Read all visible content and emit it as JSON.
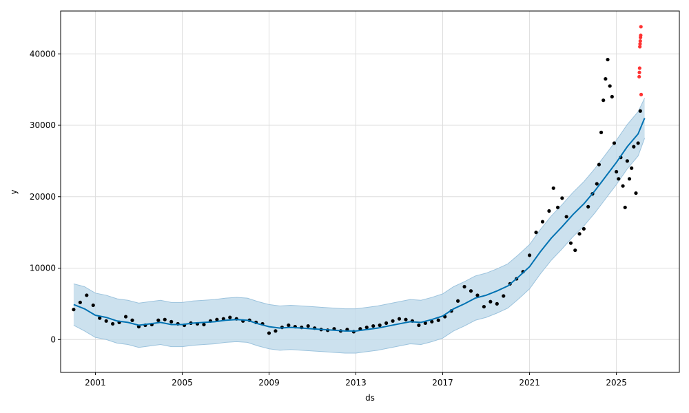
{
  "chart_data": {
    "type": "line",
    "title": "",
    "xlabel": "ds",
    "ylabel": "y",
    "xlim": [
      1999.4,
      2027.9
    ],
    "ylim": [
      -4600,
      46000
    ],
    "grid": true,
    "legend": "none",
    "x_ticks": [
      2001,
      2005,
      2009,
      2013,
      2017,
      2021,
      2025
    ],
    "x_tick_labels": [
      "2001",
      "2005",
      "2009",
      "2013",
      "2017",
      "2021",
      "2025"
    ],
    "y_ticks": [
      0,
      10000,
      20000,
      30000,
      40000
    ],
    "y_tick_labels": [
      "0",
      "10000",
      "20000",
      "30000",
      "40000"
    ],
    "colors": {
      "forecast_line": "#0072B2",
      "interval_fill": "#BFD9EA",
      "interval_edge": "#9CC3DD",
      "observed_points": "#000000",
      "outlier_points": "#FF3333",
      "grid": "#DDDDDD"
    },
    "series": [
      {
        "role": "forecast",
        "x": [
          2000.0,
          2000.5,
          2001.0,
          2001.5,
          2002.0,
          2002.5,
          2003.0,
          2003.5,
          2004.0,
          2004.5,
          2005.0,
          2005.5,
          2006.0,
          2006.5,
          2007.0,
          2007.5,
          2008.0,
          2008.5,
          2009.0,
          2009.5,
          2010.0,
          2010.5,
          2011.0,
          2011.5,
          2012.0,
          2012.5,
          2013.0,
          2013.5,
          2014.0,
          2014.5,
          2015.0,
          2015.5,
          2016.0,
          2016.5,
          2017.0,
          2017.5,
          2018.0,
          2018.5,
          2019.0,
          2019.5,
          2020.0,
          2020.5,
          2021.0,
          2021.5,
          2022.0,
          2022.5,
          2023.0,
          2023.5,
          2024.0,
          2024.5,
          2025.0,
          2025.5,
          2026.0,
          2026.3
        ],
        "values": [
          4900,
          4300,
          3400,
          3100,
          2600,
          2400,
          2000,
          2200,
          2400,
          2100,
          2100,
          2300,
          2400,
          2500,
          2700,
          2800,
          2700,
          2200,
          1800,
          1600,
          1700,
          1600,
          1500,
          1400,
          1300,
          1200,
          1200,
          1400,
          1600,
          1900,
          2200,
          2500,
          2400,
          2800,
          3300,
          4300,
          5000,
          5800,
          6200,
          6800,
          7500,
          8800,
          10200,
          12300,
          14200,
          15800,
          17500,
          19000,
          20800,
          22800,
          24800,
          27000,
          28800,
          31000
        ]
      },
      {
        "role": "interval_upper",
        "x": [
          2000.0,
          2000.5,
          2001.0,
          2001.5,
          2002.0,
          2002.5,
          2003.0,
          2003.5,
          2004.0,
          2004.5,
          2005.0,
          2005.5,
          2006.0,
          2006.5,
          2007.0,
          2007.5,
          2008.0,
          2008.5,
          2009.0,
          2009.5,
          2010.0,
          2010.5,
          2011.0,
          2011.5,
          2012.0,
          2012.5,
          2013.0,
          2013.5,
          2014.0,
          2014.5,
          2015.0,
          2015.5,
          2016.0,
          2016.5,
          2017.0,
          2017.5,
          2018.0,
          2018.5,
          2019.0,
          2019.5,
          2020.0,
          2020.5,
          2021.0,
          2021.5,
          2022.0,
          2022.5,
          2023.0,
          2023.5,
          2024.0,
          2024.5,
          2025.0,
          2025.5,
          2026.0,
          2026.3
        ],
        "values": [
          7800,
          7400,
          6500,
          6200,
          5700,
          5500,
          5100,
          5300,
          5500,
          5200,
          5200,
          5400,
          5500,
          5600,
          5800,
          5900,
          5800,
          5300,
          4900,
          4700,
          4800,
          4700,
          4600,
          4500,
          4400,
          4300,
          4300,
          4500,
          4700,
          5000,
          5300,
          5600,
          5500,
          5900,
          6400,
          7400,
          8100,
          8900,
          9300,
          9900,
          10600,
          11900,
          13300,
          15400,
          17300,
          18900,
          20600,
          22100,
          23900,
          25900,
          27900,
          30100,
          31900,
          33800
        ]
      },
      {
        "role": "interval_lower",
        "x": [
          2000.0,
          2000.5,
          2001.0,
          2001.5,
          2002.0,
          2002.5,
          2003.0,
          2003.5,
          2004.0,
          2004.5,
          2005.0,
          2005.5,
          2006.0,
          2006.5,
          2007.0,
          2007.5,
          2008.0,
          2008.5,
          2009.0,
          2009.5,
          2010.0,
          2010.5,
          2011.0,
          2011.5,
          2012.0,
          2012.5,
          2013.0,
          2013.5,
          2014.0,
          2014.5,
          2015.0,
          2015.5,
          2016.0,
          2016.5,
          2017.0,
          2017.5,
          2018.0,
          2018.5,
          2019.0,
          2019.5,
          2020.0,
          2020.5,
          2021.0,
          2021.5,
          2022.0,
          2022.5,
          2023.0,
          2023.5,
          2024.0,
          2024.5,
          2025.0,
          2025.5,
          2026.0,
          2026.3
        ],
        "values": [
          2000,
          1200,
          300,
          0,
          -500,
          -700,
          -1100,
          -900,
          -700,
          -1000,
          -1000,
          -800,
          -700,
          -600,
          -400,
          -300,
          -400,
          -900,
          -1300,
          -1500,
          -1400,
          -1500,
          -1600,
          -1700,
          -1800,
          -1900,
          -1900,
          -1700,
          -1500,
          -1200,
          -900,
          -600,
          -700,
          -300,
          200,
          1200,
          1900,
          2700,
          3100,
          3700,
          4400,
          5700,
          7100,
          9200,
          11100,
          12700,
          14400,
          15900,
          17700,
          19700,
          21700,
          23900,
          25700,
          28200
        ]
      },
      {
        "role": "observed",
        "x": [
          2000.0,
          2000.3,
          2000.6,
          2000.9,
          2001.2,
          2001.5,
          2001.8,
          2002.1,
          2002.4,
          2002.7,
          2003.0,
          2003.3,
          2003.6,
          2003.9,
          2004.2,
          2004.5,
          2004.8,
          2005.1,
          2005.4,
          2005.7,
          2006.0,
          2006.3,
          2006.6,
          2006.9,
          2007.2,
          2007.5,
          2007.8,
          2008.1,
          2008.4,
          2008.7,
          2009.0,
          2009.3,
          2009.6,
          2009.9,
          2010.2,
          2010.5,
          2010.8,
          2011.1,
          2011.4,
          2011.7,
          2012.0,
          2012.3,
          2012.6,
          2012.9,
          2013.2,
          2013.5,
          2013.8,
          2014.1,
          2014.4,
          2014.7,
          2015.0,
          2015.3,
          2015.6,
          2015.9,
          2016.2,
          2016.5,
          2016.8,
          2017.1,
          2017.4,
          2017.7,
          2018.0,
          2018.3,
          2018.6,
          2018.9,
          2019.2,
          2019.5,
          2019.8,
          2020.1,
          2020.4,
          2020.7,
          2021.0,
          2021.3,
          2021.6,
          2021.9,
          2022.1,
          2022.3,
          2022.5,
          2022.7,
          2022.9,
          2023.1,
          2023.3,
          2023.5,
          2023.7,
          2023.9,
          2024.1,
          2024.2,
          2024.3,
          2024.4,
          2024.5,
          2024.6,
          2024.7,
          2024.8,
          2024.9,
          2025.0,
          2025.1,
          2025.2,
          2025.3,
          2025.4,
          2025.5,
          2025.6,
          2025.7,
          2025.8,
          2025.9,
          2026.0,
          2026.1
        ],
        "values": [
          4200,
          5200,
          6200,
          4800,
          3000,
          2600,
          2200,
          2400,
          3200,
          2700,
          1800,
          2000,
          2100,
          2700,
          2800,
          2500,
          2200,
          2000,
          2300,
          2200,
          2100,
          2600,
          2800,
          2900,
          3100,
          2900,
          2600,
          2700,
          2400,
          2200,
          900,
          1200,
          1700,
          2000,
          1800,
          1700,
          1900,
          1600,
          1400,
          1300,
          1500,
          1200,
          1400,
          1100,
          1500,
          1700,
          1900,
          2000,
          2300,
          2600,
          2900,
          2800,
          2600,
          2000,
          2300,
          2500,
          2700,
          3200,
          4000,
          5400,
          7400,
          6800,
          6200,
          4600,
          5300,
          5000,
          6100,
          7800,
          8500,
          9500,
          11800,
          15000,
          16500,
          18000,
          21200,
          18500,
          19800,
          17200,
          13500,
          12500,
          14800,
          15500,
          18600,
          20400,
          21800,
          24500,
          29000,
          33500,
          36500,
          39200,
          35500,
          34000,
          27500,
          23500,
          22500,
          25500,
          21500,
          18500,
          25000,
          22500,
          24000,
          27000,
          20500,
          27500,
          32000
        ]
      },
      {
        "role": "outliers",
        "x": [
          2026.05,
          2026.06,
          2026.07,
          2026.08,
          2026.09,
          2026.1,
          2026.11,
          2026.12,
          2026.13,
          2026.14
        ],
        "values": [
          36800,
          37400,
          38000,
          41000,
          41400,
          41800,
          42300,
          42600,
          43800,
          34300
        ]
      }
    ]
  }
}
